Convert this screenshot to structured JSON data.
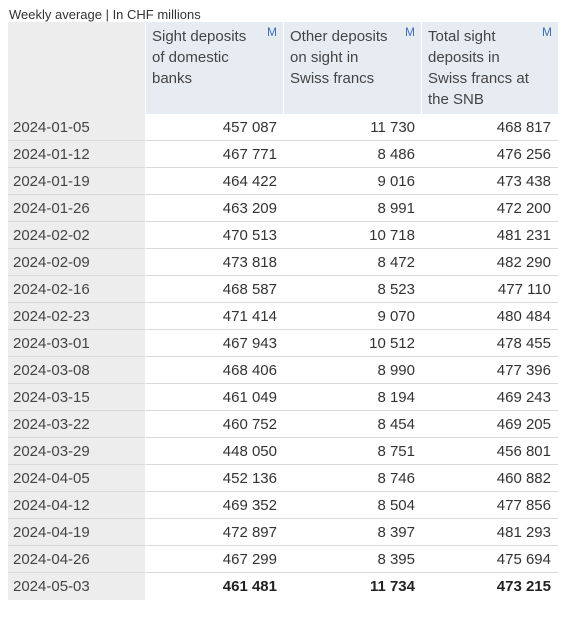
{
  "caption": "Weekly average | In CHF millions",
  "columns": [
    {
      "label": "Sight deposits of domestic banks",
      "badge": "M"
    },
    {
      "label": "Other deposits on sight in Swiss francs",
      "badge": "M"
    },
    {
      "label": "Total sight deposits in Swiss francs at the SNB",
      "badge": "M"
    }
  ],
  "rows": [
    {
      "date": "2024-01-05",
      "domestic": "457 087",
      "other": "11 730",
      "total": "468 817"
    },
    {
      "date": "2024-01-12",
      "domestic": "467 771",
      "other": "8 486",
      "total": "476 256"
    },
    {
      "date": "2024-01-19",
      "domestic": "464 422",
      "other": "9 016",
      "total": "473 438"
    },
    {
      "date": "2024-01-26",
      "domestic": "463 209",
      "other": "8 991",
      "total": "472 200"
    },
    {
      "date": "2024-02-02",
      "domestic": "470 513",
      "other": "10 718",
      "total": "481 231"
    },
    {
      "date": "2024-02-09",
      "domestic": "473 818",
      "other": "8 472",
      "total": "482 290"
    },
    {
      "date": "2024-02-16",
      "domestic": "468 587",
      "other": "8 523",
      "total": "477 110"
    },
    {
      "date": "2024-02-23",
      "domestic": "471 414",
      "other": "9 070",
      "total": "480 484"
    },
    {
      "date": "2024-03-01",
      "domestic": "467 943",
      "other": "10 512",
      "total": "478 455"
    },
    {
      "date": "2024-03-08",
      "domestic": "468 406",
      "other": "8 990",
      "total": "477 396"
    },
    {
      "date": "2024-03-15",
      "domestic": "461 049",
      "other": "8 194",
      "total": "469 243"
    },
    {
      "date": "2024-03-22",
      "domestic": "460 752",
      "other": "8 454",
      "total": "469 205"
    },
    {
      "date": "2024-03-29",
      "domestic": "448 050",
      "other": "8 751",
      "total": "456 801"
    },
    {
      "date": "2024-04-05",
      "domestic": "452 136",
      "other": "8 746",
      "total": "460 882"
    },
    {
      "date": "2024-04-12",
      "domestic": "469 352",
      "other": "8 504",
      "total": "477 856"
    },
    {
      "date": "2024-04-19",
      "domestic": "472 897",
      "other": "8 397",
      "total": "481 293"
    },
    {
      "date": "2024-04-26",
      "domestic": "467 299",
      "other": "8 395",
      "total": "475 694"
    },
    {
      "date": "2024-05-03",
      "domestic": "461 481",
      "other": "11 734",
      "total": "473 215"
    }
  ],
  "colors": {
    "header_bg": "#e7ecf2",
    "date_bg": "#ededed",
    "badge": "#3d6fb3",
    "row_border": "#d9d9d9"
  }
}
